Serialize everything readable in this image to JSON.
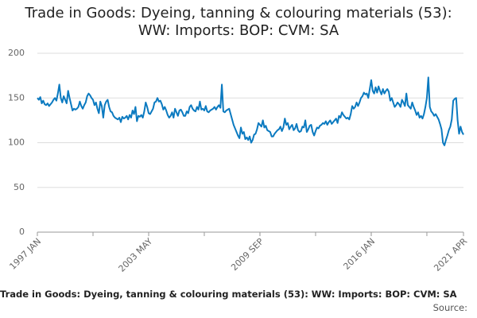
{
  "chart_data": {
    "type": "line",
    "title": "Trade in Goods: Dyeing, tanning & colouring materials (53): WW: Imports: BOP: CVM: SA",
    "caption": "Trade in Goods: Dyeing, tanning & colouring materials (53): WW: Imports: BOP: CVM: SA",
    "source": "Source:",
    "categories": [
      "1997 JAN",
      null,
      null,
      null,
      null,
      null,
      null,
      null,
      null,
      null,
      null,
      null,
      null,
      null,
      null,
      null,
      null,
      null,
      null,
      null,
      null,
      null,
      null,
      null,
      null,
      null,
      null,
      null,
      null,
      null,
      null,
      null,
      null,
      null,
      null,
      null,
      null,
      null,
      null,
      null,
      null,
      null,
      null,
      null,
      null,
      null,
      null,
      null,
      null,
      null,
      null,
      null,
      null,
      null,
      null,
      null,
      null,
      null,
      null,
      null,
      null,
      null,
      null,
      null,
      null,
      null,
      null,
      null,
      null,
      null,
      null,
      null,
      null,
      null,
      null,
      null,
      "2003 MAY",
      null,
      null,
      null,
      null,
      null,
      null,
      null,
      null,
      null,
      null,
      null,
      null,
      null,
      null,
      null,
      null,
      null,
      null,
      null,
      null,
      null,
      null,
      null,
      null,
      null,
      null,
      null,
      null,
      null,
      null,
      null,
      null,
      null,
      null,
      null,
      null,
      null,
      null,
      null,
      null,
      null,
      null,
      null,
      null,
      null,
      null,
      null,
      null,
      null,
      null,
      null,
      null,
      null,
      null,
      null,
      null,
      null,
      null,
      null,
      null,
      null,
      null,
      null,
      null,
      null,
      null,
      null,
      null,
      null,
      null,
      null,
      null,
      null,
      null,
      null,
      "2009 SEP",
      null,
      null,
      null,
      null,
      null,
      null,
      null,
      null,
      null,
      null,
      null,
      null,
      null,
      null,
      null,
      null,
      null,
      null,
      null,
      null,
      null,
      null,
      null,
      null,
      null,
      null,
      null,
      null,
      null,
      null,
      null,
      null,
      null,
      null,
      null,
      null,
      null,
      null,
      null,
      null,
      null,
      null,
      null,
      null,
      null,
      null,
      null,
      null,
      null,
      null,
      null,
      null,
      null,
      null,
      null,
      null,
      null,
      null,
      null,
      null,
      null,
      null,
      null,
      null,
      null,
      null,
      null,
      null,
      null,
      null,
      null,
      null,
      null,
      null,
      null,
      "2016 JAN",
      null,
      null,
      null,
      null,
      null,
      null,
      null,
      null,
      null,
      null,
      null,
      null,
      null,
      null,
      null,
      null,
      null,
      null,
      null,
      null,
      null,
      null,
      null,
      null,
      null,
      null,
      null,
      null,
      null,
      null,
      null,
      null,
      null,
      null,
      null,
      null,
      null,
      null,
      null,
      null,
      null,
      null,
      null,
      null,
      null,
      null,
      null,
      null,
      null,
      null,
      null,
      null,
      null,
      null,
      null,
      null,
      null,
      null,
      null,
      null,
      null,
      null,
      "2021 APR"
    ],
    "values": [
      150,
      148,
      151,
      144,
      147,
      143,
      142,
      144,
      141,
      143,
      145,
      148,
      150,
      147,
      155,
      165,
      150,
      145,
      152,
      148,
      144,
      158,
      150,
      143,
      136,
      138,
      137,
      138,
      140,
      146,
      141,
      138,
      142,
      145,
      152,
      155,
      153,
      150,
      148,
      142,
      145,
      138,
      133,
      146,
      141,
      128,
      142,
      146,
      148,
      140,
      135,
      134,
      130,
      128,
      127,
      126,
      128,
      123,
      129,
      127,
      128,
      130,
      126,
      131,
      128,
      136,
      132,
      140,
      124,
      130,
      129,
      131,
      128,
      135,
      145,
      140,
      133,
      132,
      135,
      138,
      145,
      146,
      150,
      146,
      147,
      143,
      137,
      140,
      136,
      131,
      128,
      130,
      134,
      128,
      138,
      134,
      130,
      136,
      137,
      134,
      130,
      130,
      135,
      133,
      140,
      142,
      138,
      136,
      135,
      140,
      137,
      146,
      137,
      138,
      136,
      141,
      135,
      134,
      136,
      137,
      138,
      140,
      137,
      140,
      142,
      139,
      165,
      135,
      134,
      136,
      137,
      138,
      132,
      126,
      120,
      116,
      112,
      108,
      105,
      117,
      110,
      112,
      104,
      106,
      103,
      107,
      100,
      103,
      109,
      110,
      115,
      122,
      120,
      118,
      125,
      117,
      119,
      114,
      113,
      112,
      107,
      107,
      110,
      112,
      114,
      115,
      118,
      113,
      117,
      127,
      120,
      122,
      115,
      118,
      120,
      114,
      116,
      121,
      114,
      112,
      113,
      118,
      117,
      125,
      112,
      115,
      119,
      120,
      112,
      108,
      113,
      117,
      116,
      119,
      120,
      122,
      121,
      124,
      120,
      123,
      125,
      121,
      123,
      125,
      127,
      122,
      130,
      128,
      134,
      131,
      129,
      127,
      128,
      126,
      132,
      141,
      138,
      140,
      145,
      141,
      145,
      150,
      152,
      156,
      154,
      155,
      150,
      160,
      170,
      158,
      155,
      162,
      156,
      163,
      158,
      154,
      160,
      155,
      158,
      160,
      157,
      147,
      150,
      145,
      140,
      142,
      145,
      143,
      140,
      148,
      145,
      141,
      155,
      142,
      140,
      138,
      145,
      140,
      136,
      131,
      134,
      128,
      130,
      127,
      132,
      140,
      150,
      173,
      140,
      135,
      133,
      130,
      132,
      129,
      126,
      121,
      115,
      100,
      97,
      103,
      108,
      114,
      118,
      126,
      147,
      149,
      150,
      125,
      110,
      118,
      112,
      109
    ],
    "color": "#0b7ac0",
    "ylim": [
      0,
      200
    ],
    "yticks": [
      0,
      50,
      100,
      150,
      200
    ],
    "grid": true
  }
}
